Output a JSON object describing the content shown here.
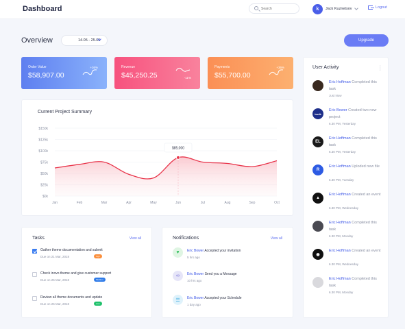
{
  "header": {
    "brand": "Dashboard",
    "search_placeholder": "Search",
    "user_initial": "k",
    "user_name": "Jack Kuznetsov",
    "logout_label": "Logout"
  },
  "overview": {
    "title": "Overview",
    "date_range": "14.05 - 25.05",
    "upgrade_label": "Upgrade"
  },
  "stats": [
    {
      "label": "Order Value",
      "value": "$58,907.00",
      "change": "+36%",
      "color_from": "#5e7ff0",
      "color_to": "#8ab2fb"
    },
    {
      "label": "Revenue",
      "value": "$45,250.25",
      "change": "-11%",
      "color_from": "#f7527e",
      "color_to": "#f9829d"
    },
    {
      "label": "Payments",
      "value": "$55,700.00",
      "change": "+36%",
      "color_from": "#fb8f55",
      "color_to": "#fcb070"
    }
  ],
  "chart_data": {
    "type": "area",
    "title": "Current Project Summary",
    "categories": [
      "Jan",
      "Feb",
      "Mar",
      "Apr",
      "May",
      "Jun",
      "Jul",
      "Aug",
      "Sep",
      "Oct"
    ],
    "series": [
      {
        "values": [
          62000,
          70000,
          75000,
          48000,
          40000,
          85000,
          75000,
          72000,
          65000,
          78000
        ],
        "color": "#e8344a"
      }
    ],
    "y_ticks": [
      "$150k",
      "$125k",
      "$100k",
      "$75k",
      "$50k",
      "$25k",
      "$0k"
    ],
    "ylim": [
      0,
      150000
    ],
    "tooltip": {
      "category": "Jun",
      "label": "$85,000"
    },
    "grid": true
  },
  "tasks": {
    "title": "Tasks",
    "view_all": "View all",
    "items": [
      {
        "title": "Gather theme documentation and submit",
        "due": "Due on 21 Mar, 2018",
        "tag": "high",
        "tag_color": "#fb8f3c",
        "checked": true
      },
      {
        "title": "Check inovo theme and give customer support",
        "due": "Due on 25 Mar, 2018",
        "tag": "Medium",
        "tag_color": "#2f7be8",
        "checked": false
      },
      {
        "title": "Review all theme documents and update",
        "due": "Due on 25 Mar, 2018",
        "tag": "Low",
        "tag_color": "#1fc16b",
        "checked": false
      }
    ]
  },
  "notifications": {
    "title": "Notifications",
    "view_all": "View all",
    "items": [
      {
        "name": "Eric Bower",
        "text": "Accepted your invitation",
        "time": "5 hrs ago",
        "icon": "heart-icon",
        "bg": "#dff5e3",
        "fg": "#2fbf5a"
      },
      {
        "name": "Eric Bower",
        "text": "Send you a Message",
        "time": "10 hrs ago",
        "icon": "link-icon",
        "bg": "#e6e5f8",
        "fg": "#7a73d9"
      },
      {
        "name": "Eric Bower",
        "text": "Accepted your Schedule",
        "time": "1 day ago",
        "icon": "list-icon",
        "bg": "#dff2fb",
        "fg": "#3aa9e0"
      }
    ]
  },
  "activity": {
    "title": "User Activity",
    "items": [
      {
        "name": "Eric Hoffman",
        "text": "Completed this task",
        "time": "Just Now",
        "avatar_bg": "#3a2a20",
        "avatar_text": ""
      },
      {
        "name": "Eric Bower",
        "text": "Created two new project",
        "time": "6.30 PM, Yesterday",
        "avatar_bg": "#1e2f8a",
        "avatar_text": "tonik"
      },
      {
        "name": "Eric Hoffman",
        "text": "Completed this task",
        "time": "6.30 PM, Yesterday",
        "avatar_bg": "#1a1a1a",
        "avatar_text": "EL"
      },
      {
        "name": "Eric Hoffman",
        "text": "Uploded new file",
        "time": "6.30 PM, Tuesday",
        "avatar_bg": "#2d5be3",
        "avatar_text": "R"
      },
      {
        "name": "Eric Hoffman",
        "text": "Created an event",
        "time": "6.30 PM, Wednesday",
        "avatar_bg": "#111111",
        "avatar_text": "▲"
      },
      {
        "name": "Eric Hoffman",
        "text": "Completed this task",
        "time": "6.30 PM, Monday",
        "avatar_bg": "#4a4a52",
        "avatar_text": ""
      },
      {
        "name": "Eric Hoffman",
        "text": "Created an event",
        "time": "6.30 PM, Wednesday",
        "avatar_bg": "#111111",
        "avatar_text": "◉"
      },
      {
        "name": "Eric Hoffman",
        "text": "Completed this task",
        "time": "6.30 PM, Monday",
        "avatar_bg": "#d9d9dd",
        "avatar_text": ""
      }
    ]
  }
}
